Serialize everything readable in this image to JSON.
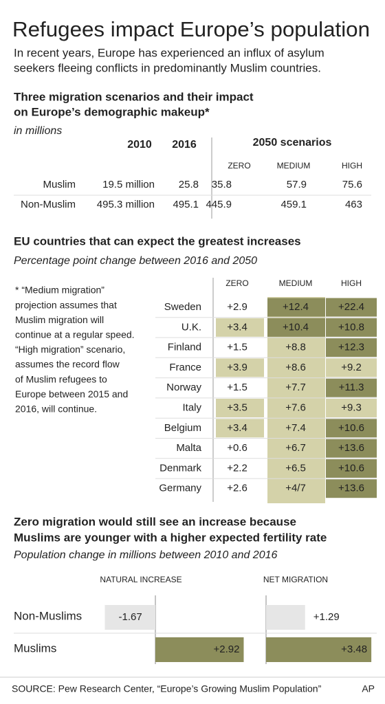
{
  "header": {
    "title": "Refugees impact Europe’s population",
    "subtitle": [
      "In recent years, Europe has experienced an influx of asylum",
      "seekers fleeing conflicts in predominantly Muslim countries."
    ]
  },
  "scenarios": {
    "heading": [
      "Three migration scenarios and their impact",
      "on Europe’s demographic makeup*"
    ],
    "unit": "in millions",
    "columns": [
      "2010",
      "2016"
    ],
    "group": "2050 scenarios",
    "subcolumns": [
      "ZERO",
      "MEDIUM",
      "HIGH"
    ],
    "rows": [
      [
        "Muslim",
        "19.5 million",
        "25.8",
        "35.8",
        "57.9",
        "75.6"
      ],
      [
        "Non-Muslim",
        "495.3 million",
        "495.1",
        "445.9",
        "459.1",
        "463"
      ]
    ]
  },
  "countries": {
    "heading": "EU countries that can expect the greatest increases",
    "subtitle": "Percentage point change between 2016 and 2050",
    "note": [
      "* “Medium migration”",
      "projection assumes that",
      "Muslim migration will",
      "continue at a regular speed.",
      "“High migration” scenario,",
      "assumes the record flow",
      "of Muslim refugees to",
      "Europe between 2015 and",
      "2016, will continue."
    ],
    "columns": [
      "ZERO",
      "MEDIUM",
      "HIGH"
    ],
    "rows": [
      [
        "Sweden",
        "+2.9",
        "+12.4",
        "+22.4"
      ],
      [
        "U.K.",
        "+3.4",
        "+10.4",
        "+10.8"
      ],
      [
        "Finland",
        "+1.5",
        "+8.8",
        "+12.3"
      ],
      [
        "France",
        "+3.9",
        "+8.6",
        "+9.2"
      ],
      [
        "Norway",
        "+1.5",
        "+7.7",
        "+11.3"
      ],
      [
        "Italy",
        "+3.5",
        "+7.6",
        "+9.3"
      ],
      [
        "Belgium",
        "+3.4",
        "+7.4",
        "+10.6"
      ],
      [
        "Malta",
        "+0.6",
        "+6.7",
        "+13.6"
      ],
      [
        "Denmark",
        "+2.2",
        "+6.5",
        "+10.6"
      ],
      [
        "Germany",
        "+2.6",
        "+4/7",
        "+13.6"
      ]
    ]
  },
  "chart_data": {
    "type": "bar",
    "title": [
      "Zero migration would still see an increase because",
      "Muslims are younger with a higher expected fertility rate"
    ],
    "subtitle": "Population change in millions between 2010 and 2016",
    "categories": [
      "Non-Muslims",
      "Muslims"
    ],
    "category_colors": [
      "#e6e6e6",
      "#8c8d5b"
    ],
    "series": [
      {
        "name": "NATURAL INCREASE",
        "values": [
          -1.67,
          2.92
        ],
        "value_labels": [
          "-1.67",
          "+2.92"
        ]
      },
      {
        "name": "NET MIGRATION",
        "values": [
          1.29,
          3.48
        ],
        "value_labels": [
          "+1.29",
          "+3.48"
        ]
      }
    ]
  },
  "footer": {
    "source": "SOURCE: Pew Research Center, “Europe’s Growing Muslim Population”",
    "credit": "AP"
  }
}
